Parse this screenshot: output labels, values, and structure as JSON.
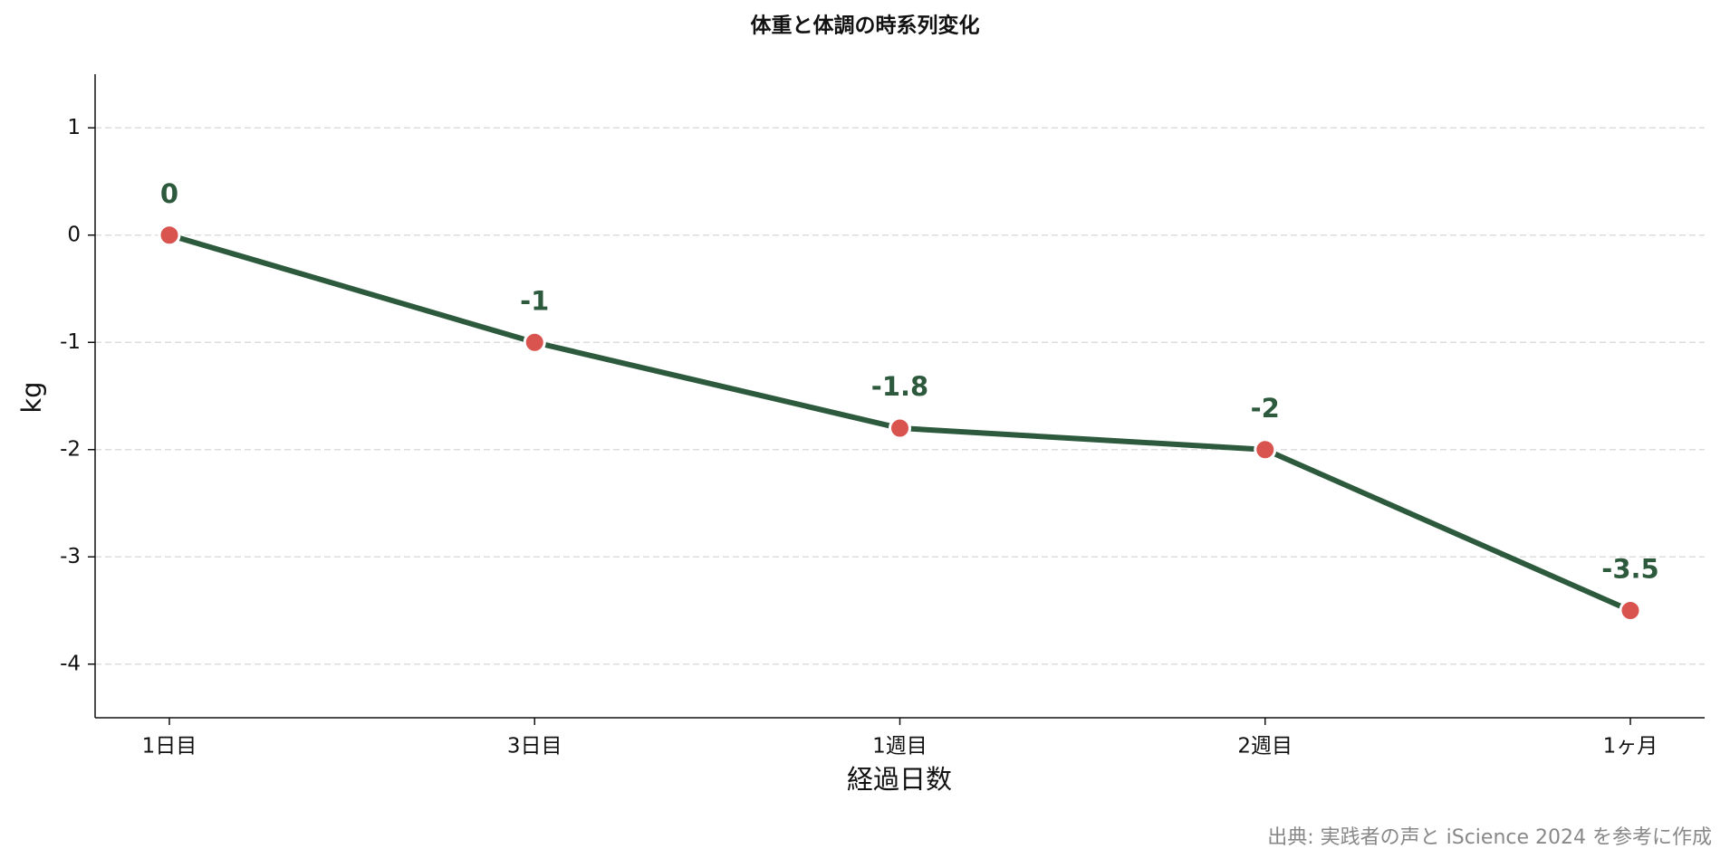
{
  "chart_data": {
    "type": "line",
    "title": "体重と体調の時系列変化",
    "x_label": "経過日数",
    "y_label": "kg",
    "source": "出典: 実践者の声と iScience 2024 を参考に作成",
    "categories": [
      "1日目",
      "3日目",
      "1週目",
      "2週目",
      "1ヶ月"
    ],
    "values": [
      0,
      -1,
      -1.8,
      -2,
      -3.5
    ],
    "color": "#2d5a3d",
    "marker_color": "#d9534f",
    "ylim": [
      -4.5,
      1.5
    ],
    "yticks": [
      -4,
      -3,
      -2,
      -1,
      0,
      1
    ],
    "grid": true
  }
}
